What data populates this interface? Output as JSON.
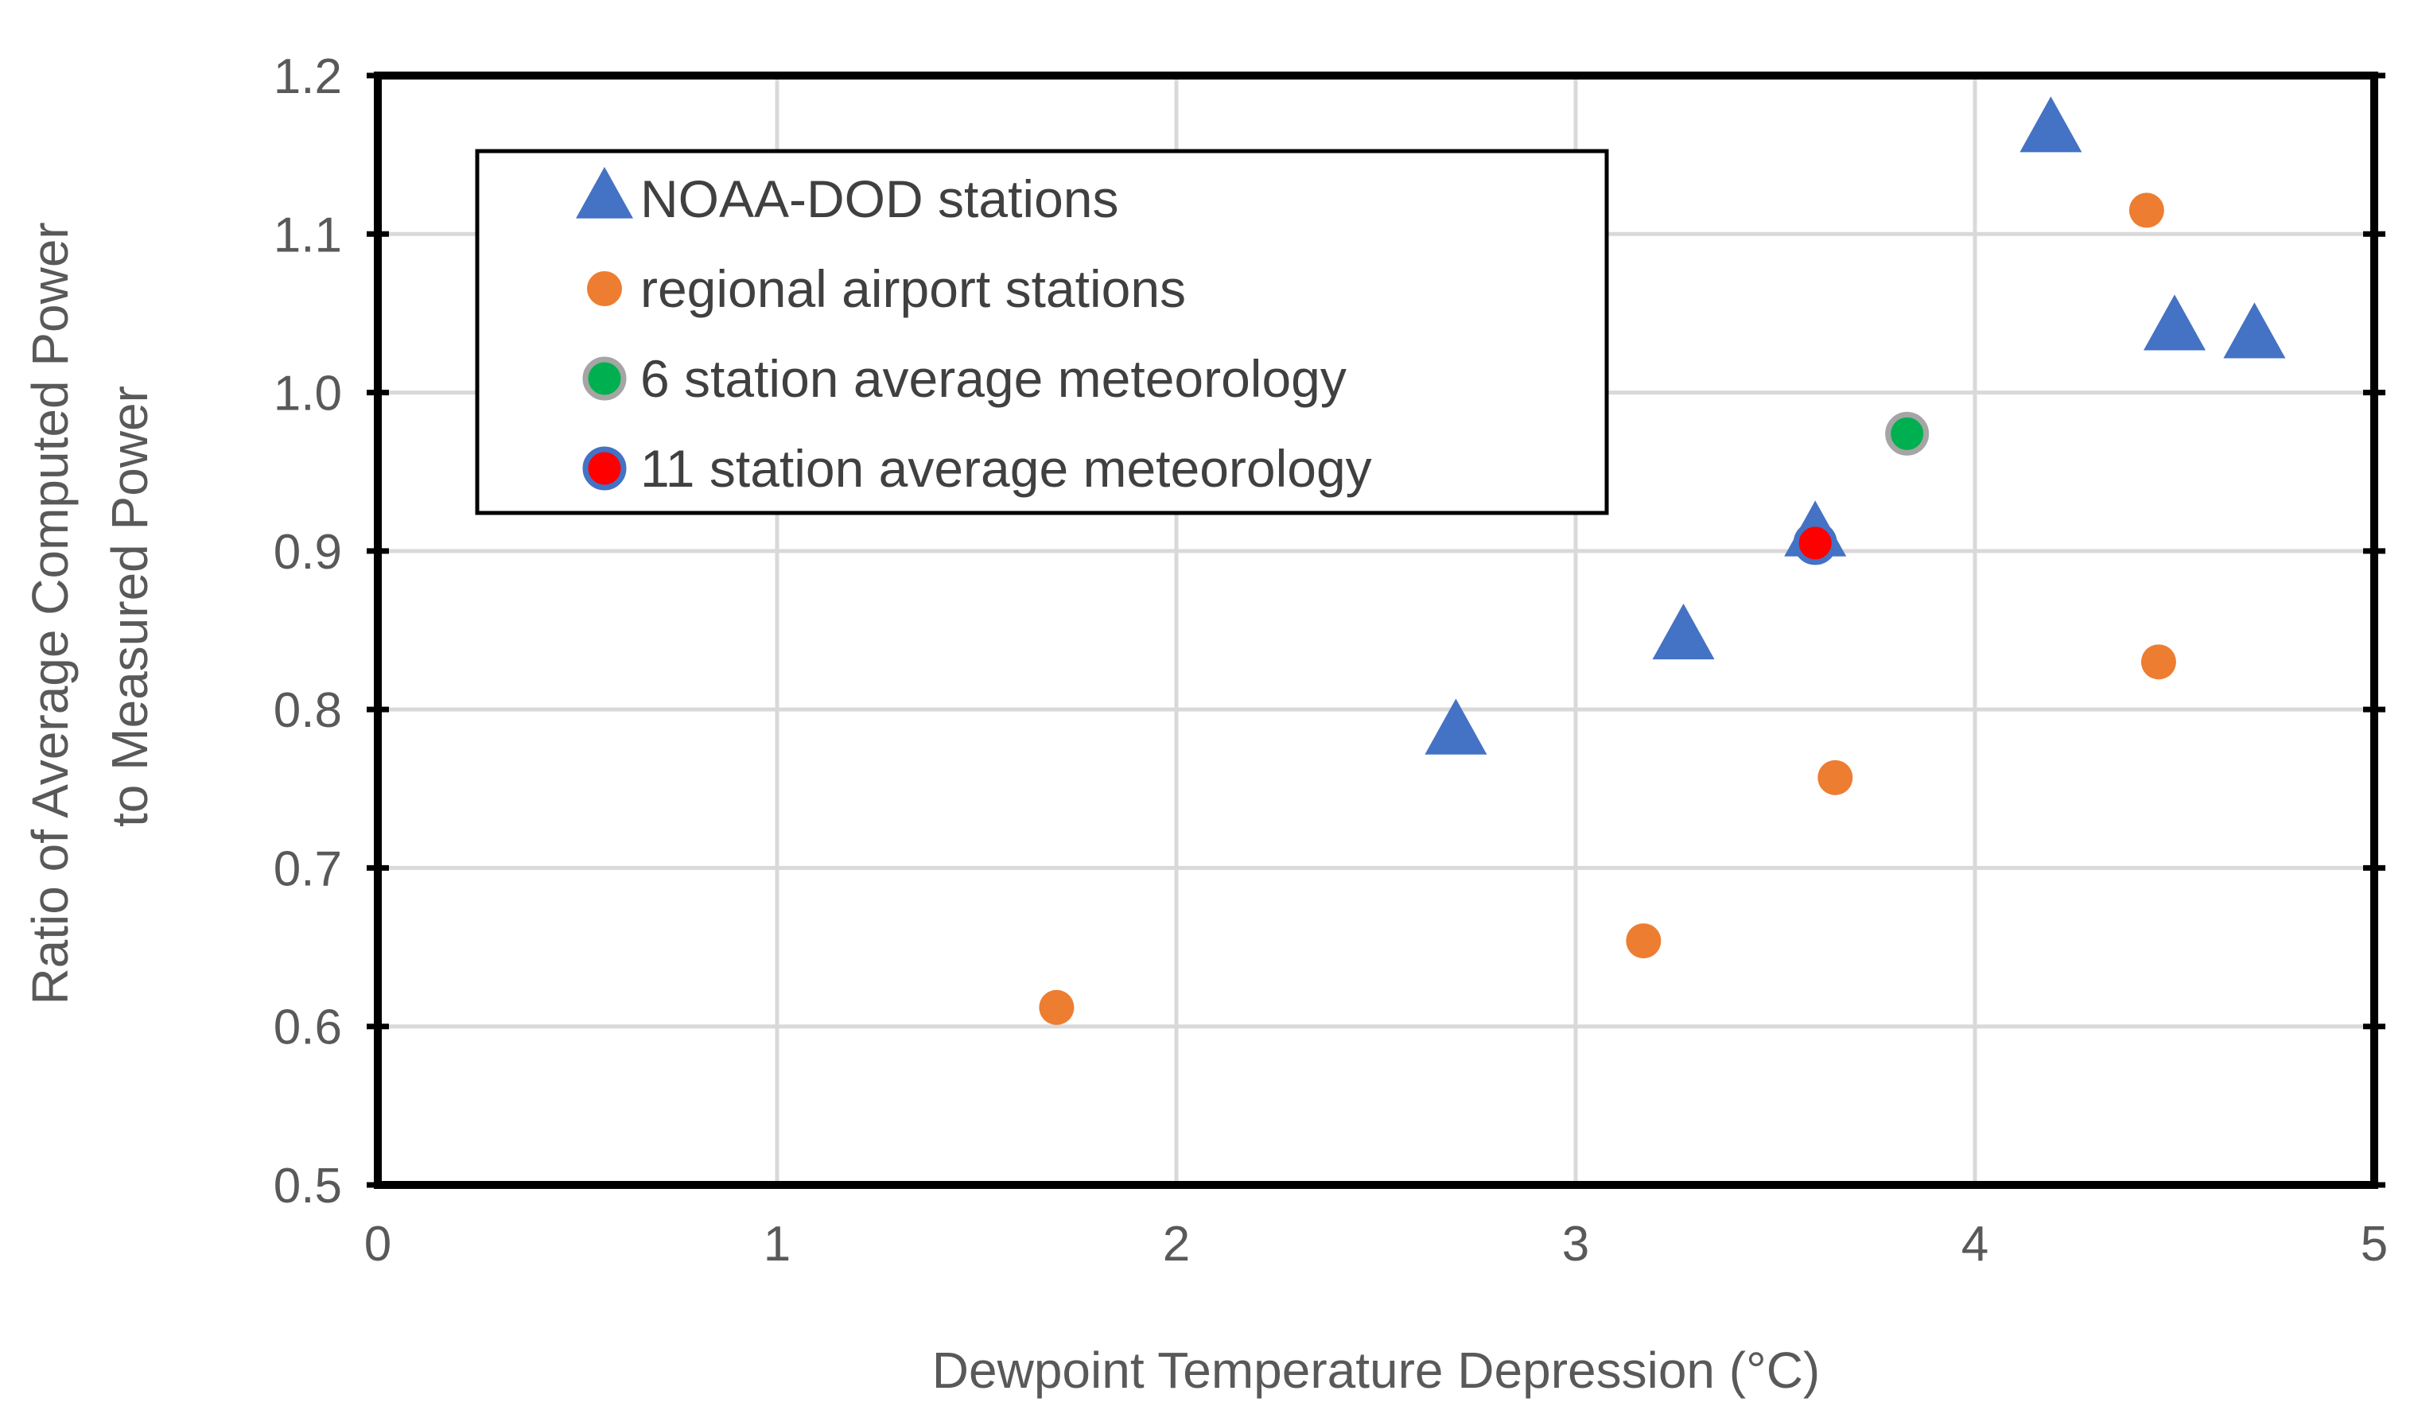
{
  "chart_data": {
    "type": "scatter",
    "title": "",
    "xlabel": "Dewpoint Temperature Depression (°C)",
    "ylabel_lines": [
      "Ratio of Average Computed Power",
      "to Measured Power"
    ],
    "xlim": [
      0,
      5
    ],
    "ylim": [
      0.5,
      1.2
    ],
    "x_ticks": [
      0,
      1,
      2,
      3,
      4,
      5
    ],
    "x_tick_labels": [
      "0",
      "1",
      "2",
      "3",
      "4",
      "5"
    ],
    "y_ticks": [
      0.5,
      0.6,
      0.7,
      0.8,
      0.9,
      1.0,
      1.1,
      1.2
    ],
    "y_tick_labels": [
      "0.5",
      "0.6",
      "0.7",
      "0.8",
      "0.9",
      "1.0",
      "1.1",
      "1.2"
    ],
    "grid": true,
    "legend_position": "top-left",
    "series": [
      {
        "name": "NOAA-DOD stations",
        "marker": "triangle",
        "color": "#4472C4",
        "points": [
          [
            2.7,
            0.785
          ],
          [
            3.27,
            0.845
          ],
          [
            3.6,
            0.91
          ],
          [
            4.19,
            1.165
          ],
          [
            4.5,
            1.04
          ],
          [
            4.7,
            1.035
          ]
        ]
      },
      {
        "name": "regional airport stations",
        "marker": "circle",
        "color": "#ED7D31",
        "points": [
          [
            1.7,
            0.612
          ],
          [
            3.17,
            0.654
          ],
          [
            3.65,
            0.757
          ],
          [
            4.46,
            0.83
          ],
          [
            4.43,
            1.115
          ]
        ]
      },
      {
        "name": "6 station average meteorology",
        "marker": "circle",
        "color": "#00B050",
        "edge_color": "#A5A5A5",
        "points": [
          [
            3.83,
            0.974
          ]
        ]
      },
      {
        "name": "11 station average meteorology",
        "marker": "circle",
        "color": "#FF0000",
        "edge_color": "#4472C4",
        "points": [
          [
            3.6,
            0.905
          ]
        ]
      }
    ]
  }
}
